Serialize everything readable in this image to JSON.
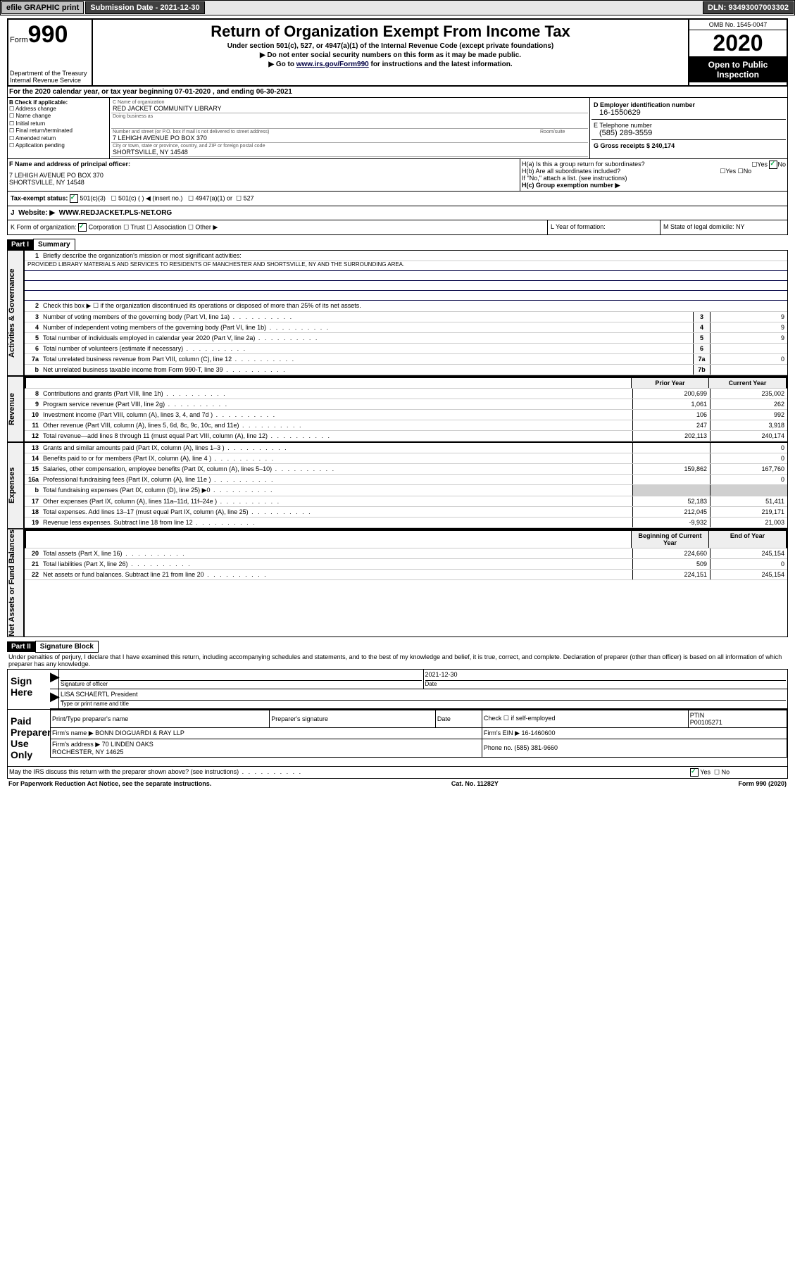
{
  "topbar": {
    "efile": "efile GRAPHIC print",
    "subm_lbl": "Submission Date - 2021-12-30",
    "dln": "DLN: 93493007003302"
  },
  "hdr": {
    "form_word": "Form",
    "form_no": "990",
    "dept": "Department of the Treasury\nInternal Revenue Service",
    "title": "Return of Organization Exempt From Income Tax",
    "sub1": "Under section 501(c), 527, or 4947(a)(1) of the Internal Revenue Code (except private foundations)",
    "sub2": "▶ Do not enter social security numbers on this form as it may be made public.",
    "sub3_pre": "▶ Go to ",
    "sub3_link": "www.irs.gov/Form990",
    "sub3_post": " for instructions and the latest information.",
    "omb": "OMB No. 1545-0047",
    "year": "2020",
    "inspect": "Open to Public Inspection"
  },
  "A": "For the 2020 calendar year, or tax year beginning 07-01-2020    , and ending 06-30-2021",
  "B": {
    "title": "B Check if applicable:",
    "items": [
      "Address change",
      "Name change",
      "Initial return",
      "Final return/terminated",
      "Amended return",
      "Application pending"
    ]
  },
  "C": {
    "name_lbl": "C Name of organization",
    "name": "RED JACKET COMMUNITY LIBRARY",
    "dba_lbl": "Doing business as",
    "addr_lbl": "Number and street (or P.O. box if mail is not delivered to street address)",
    "room_lbl": "Room/suite",
    "addr": "7 LEHIGH AVENUE PO BOX 370",
    "city_lbl": "City or town, state or province, country, and ZIP or foreign postal code",
    "city": "SHORTSVILLE, NY  14548"
  },
  "D": {
    "lbl": "D Employer identification number",
    "val": "16-1550629"
  },
  "E": {
    "lbl": "E Telephone number",
    "val": "(585) 289-3559"
  },
  "G": {
    "lbl": "G Gross receipts $ 240,174"
  },
  "F": {
    "lbl": "F  Name and address of principal officer:",
    "val": "7 LEHIGH AVENUE PO BOX 370\nSHORTSVILLE, NY  14548"
  },
  "H": {
    "a": "H(a)  Is this a group return for subordinates?",
    "b": "H(b)  Are all subordinates included?",
    "note": "If \"No,\" attach a list. (see instructions)",
    "c": "H(c)  Group exemption number ▶",
    "yes": "Yes",
    "no": "No"
  },
  "I": {
    "lbl": "Tax-exempt status:",
    "opts": [
      "501(c)(3)",
      "501(c) (  ) ◀ (insert no.)",
      "4947(a)(1) or",
      "527"
    ]
  },
  "J": {
    "lbl": "Website: ▶",
    "val": "WWW.REDJACKET.PLS-NET.ORG"
  },
  "K": {
    "lbl": "K Form of organization:",
    "opts": [
      "Corporation",
      "Trust",
      "Association",
      "Other ▶"
    ]
  },
  "L": "L Year of formation:",
  "M": "M State of legal domicile: NY",
  "part1": {
    "hdr": "Part I",
    "title": "Summary",
    "l1": "Briefly describe the organization's mission or most significant activities:",
    "mission": "PROVIDED LIBRARY MATERIALS AND SERVICES TO RESIDENTS OF MANCHESTER AND SHORTSVILLE, NY AND THE SURROUNDING AREA.",
    "l2": "Check this box ▶ ☐  if the organization discontinued its operations or disposed of more than 25% of its net assets.",
    "rows_gov": [
      {
        "n": "3",
        "t": "Number of voting members of the governing body (Part VI, line 1a)",
        "b": "3",
        "v": "9"
      },
      {
        "n": "4",
        "t": "Number of independent voting members of the governing body (Part VI, line 1b)",
        "b": "4",
        "v": "9"
      },
      {
        "n": "5",
        "t": "Total number of individuals employed in calendar year 2020 (Part V, line 2a)",
        "b": "5",
        "v": "9"
      },
      {
        "n": "6",
        "t": "Total number of volunteers (estimate if necessary)",
        "b": "6",
        "v": ""
      },
      {
        "n": "7a",
        "t": "Total unrelated business revenue from Part VIII, column (C), line 12",
        "b": "7a",
        "v": "0"
      },
      {
        "n": "b",
        "t": "Net unrelated business taxable income from Form 990-T, line 39",
        "b": "7b",
        "v": ""
      }
    ],
    "col_prior": "Prior Year",
    "col_curr": "Current Year",
    "rows_rev": [
      {
        "n": "8",
        "t": "Contributions and grants (Part VIII, line 1h)",
        "p": "200,699",
        "c": "235,002"
      },
      {
        "n": "9",
        "t": "Program service revenue (Part VIII, line 2g)",
        "p": "1,061",
        "c": "262"
      },
      {
        "n": "10",
        "t": "Investment income (Part VIII, column (A), lines 3, 4, and 7d )",
        "p": "106",
        "c": "992"
      },
      {
        "n": "11",
        "t": "Other revenue (Part VIII, column (A), lines 5, 6d, 8c, 9c, 10c, and 11e)",
        "p": "247",
        "c": "3,918"
      },
      {
        "n": "12",
        "t": "Total revenue—add lines 8 through 11 (must equal Part VIII, column (A), line 12)",
        "p": "202,113",
        "c": "240,174"
      }
    ],
    "rows_exp": [
      {
        "n": "13",
        "t": "Grants and similar amounts paid (Part IX, column (A), lines 1–3 )",
        "p": "",
        "c": "0"
      },
      {
        "n": "14",
        "t": "Benefits paid to or for members (Part IX, column (A), line 4 )",
        "p": "",
        "c": "0"
      },
      {
        "n": "15",
        "t": "Salaries, other compensation, employee benefits (Part IX, column (A), lines 5–10)",
        "p": "159,862",
        "c": "167,760"
      },
      {
        "n": "16a",
        "t": "Professional fundraising fees (Part IX, column (A), line 11e )",
        "p": "",
        "c": "0"
      },
      {
        "n": "b",
        "t": "Total fundraising expenses (Part IX, column (D), line 25) ▶0",
        "p": "grey",
        "c": "grey"
      },
      {
        "n": "17",
        "t": "Other expenses (Part IX, column (A), lines 11a–11d, 11f–24e )",
        "p": "52,183",
        "c": "51,411"
      },
      {
        "n": "18",
        "t": "Total expenses. Add lines 13–17 (must equal Part IX, column (A), line 25)",
        "p": "212,045",
        "c": "219,171"
      },
      {
        "n": "19",
        "t": "Revenue less expenses. Subtract line 18 from line 12",
        "p": "-9,932",
        "c": "21,003"
      }
    ],
    "col_beg": "Beginning of Current Year",
    "col_end": "End of Year",
    "rows_net": [
      {
        "n": "20",
        "t": "Total assets (Part X, line 16)",
        "p": "224,660",
        "c": "245,154"
      },
      {
        "n": "21",
        "t": "Total liabilities (Part X, line 26)",
        "p": "509",
        "c": "0"
      },
      {
        "n": "22",
        "t": "Net assets or fund balances. Subtract line 21 from line 20",
        "p": "224,151",
        "c": "245,154"
      }
    ],
    "vtab_gov": "Activities & Governance",
    "vtab_rev": "Revenue",
    "vtab_exp": "Expenses",
    "vtab_net": "Net Assets or Fund Balances"
  },
  "part2": {
    "hdr": "Part II",
    "title": "Signature Block",
    "decl": "Under penalties of perjury, I declare that I have examined this return, including accompanying schedules and statements, and to the best of my knowledge and belief, it is true, correct, and complete. Declaration of preparer (other than officer) is based on all information of which preparer has any knowledge.",
    "sign_here": "Sign Here",
    "sig_officer": "Signature of officer",
    "date_lbl": "Date",
    "date": "2021-12-30",
    "officer": "LISA SCHAERTL President",
    "type_lbl": "Type or print name and title",
    "paid": "Paid Preparer Use Only",
    "prep_name_lbl": "Print/Type preparer's name",
    "prep_sig_lbl": "Preparer's signature",
    "self_emp": "Check ☐ if self-employed",
    "ptin_lbl": "PTIN",
    "ptin": "P00105271",
    "firm_name_lbl": "Firm's name   ▶",
    "firm_name": "BONN DIOGUARDI & RAY LLP",
    "firm_ein_lbl": "Firm's EIN ▶",
    "firm_ein": "16-1460600",
    "firm_addr_lbl": "Firm's address ▶",
    "firm_addr": "70 LINDEN OAKS\nROCHESTER, NY  14625",
    "phone_lbl": "Phone no.",
    "phone": "(585) 381-9660",
    "discuss": "May the IRS discuss this return with the preparer shown above? (see instructions)"
  },
  "footer": {
    "l": "For Paperwork Reduction Act Notice, see the separate instructions.",
    "c": "Cat. No. 11282Y",
    "r": "Form 990 (2020)"
  }
}
